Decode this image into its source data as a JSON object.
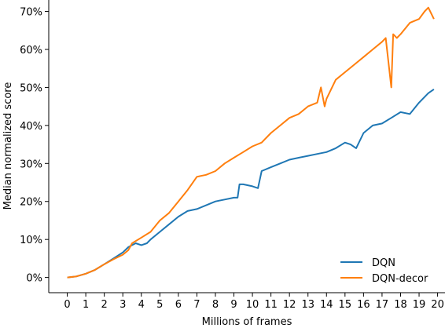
{
  "chart_data": {
    "type": "line",
    "title": "",
    "xlabel": "Millions of frames",
    "ylabel": "Median normalized score",
    "xlim": [
      -1,
      20.4
    ],
    "ylim": [
      -0.04,
      0.73
    ],
    "xticks": [
      0,
      1,
      2,
      3,
      4,
      5,
      6,
      7,
      8,
      9,
      10,
      11,
      12,
      13,
      14,
      15,
      16,
      17,
      18,
      19,
      20
    ],
    "xtick_labels": [
      "0",
      "1",
      "2",
      "3",
      "4",
      "5",
      "6",
      "7",
      "8",
      "9",
      "10",
      "11",
      "12",
      "13",
      "14",
      "15",
      "16",
      "17",
      "18",
      "19",
      "20"
    ],
    "yticks": [
      0,
      0.1,
      0.2,
      0.3,
      0.4,
      0.5,
      0.6,
      0.7
    ],
    "ytick_labels": [
      "0%",
      "10%",
      "20%",
      "30%",
      "40%",
      "50%",
      "60%",
      "70%"
    ],
    "legend_position": "bottom-right",
    "grid": false,
    "series": [
      {
        "name": "DQN",
        "color": "#1f77b4",
        "x": [
          0,
          0.5,
          1,
          1.5,
          2,
          2.5,
          3,
          3.3,
          3.5,
          3.7,
          4,
          4.3,
          4.5,
          5,
          5.5,
          6,
          6.5,
          7,
          7.5,
          8,
          8.5,
          9,
          9.2,
          9.3,
          9.5,
          10,
          10.3,
          10.5,
          11,
          11.5,
          12,
          12.5,
          13,
          13.5,
          14,
          14.5,
          15,
          15.3,
          15.6,
          16,
          16.5,
          17,
          17.5,
          18,
          18.5,
          19,
          19.5,
          19.8
        ],
        "y": [
          0,
          0.003,
          0.01,
          0.02,
          0.035,
          0.05,
          0.066,
          0.08,
          0.085,
          0.09,
          0.085,
          0.09,
          0.1,
          0.12,
          0.14,
          0.16,
          0.175,
          0.18,
          0.19,
          0.2,
          0.205,
          0.21,
          0.21,
          0.245,
          0.245,
          0.24,
          0.235,
          0.28,
          0.29,
          0.3,
          0.31,
          0.315,
          0.32,
          0.325,
          0.33,
          0.34,
          0.355,
          0.35,
          0.34,
          0.38,
          0.4,
          0.405,
          0.42,
          0.435,
          0.43,
          0.46,
          0.485,
          0.495
        ]
      },
      {
        "name": "DQN-decor",
        "color": "#ff7f0e",
        "x": [
          0,
          0.5,
          1,
          1.5,
          2,
          2.5,
          3,
          3.3,
          3.5,
          4,
          4.5,
          5,
          5.5,
          6,
          6.5,
          7,
          7.5,
          8,
          8.5,
          9,
          9.5,
          10,
          10.5,
          11,
          11.5,
          12,
          12.5,
          13,
          13.5,
          13.7,
          13.9,
          14,
          14.3,
          14.5,
          15,
          15.5,
          16,
          16.5,
          17,
          17.2,
          17.5,
          17.6,
          17.8,
          18,
          18.5,
          19,
          19.3,
          19.5,
          19.8
        ],
        "y": [
          0,
          0.003,
          0.01,
          0.02,
          0.035,
          0.048,
          0.06,
          0.072,
          0.09,
          0.105,
          0.12,
          0.15,
          0.17,
          0.2,
          0.23,
          0.265,
          0.27,
          0.28,
          0.3,
          0.315,
          0.33,
          0.345,
          0.355,
          0.38,
          0.4,
          0.42,
          0.43,
          0.45,
          0.46,
          0.5,
          0.45,
          0.47,
          0.5,
          0.52,
          0.54,
          0.56,
          0.58,
          0.6,
          0.62,
          0.63,
          0.5,
          0.64,
          0.63,
          0.64,
          0.67,
          0.68,
          0.7,
          0.71,
          0.68
        ]
      }
    ]
  }
}
